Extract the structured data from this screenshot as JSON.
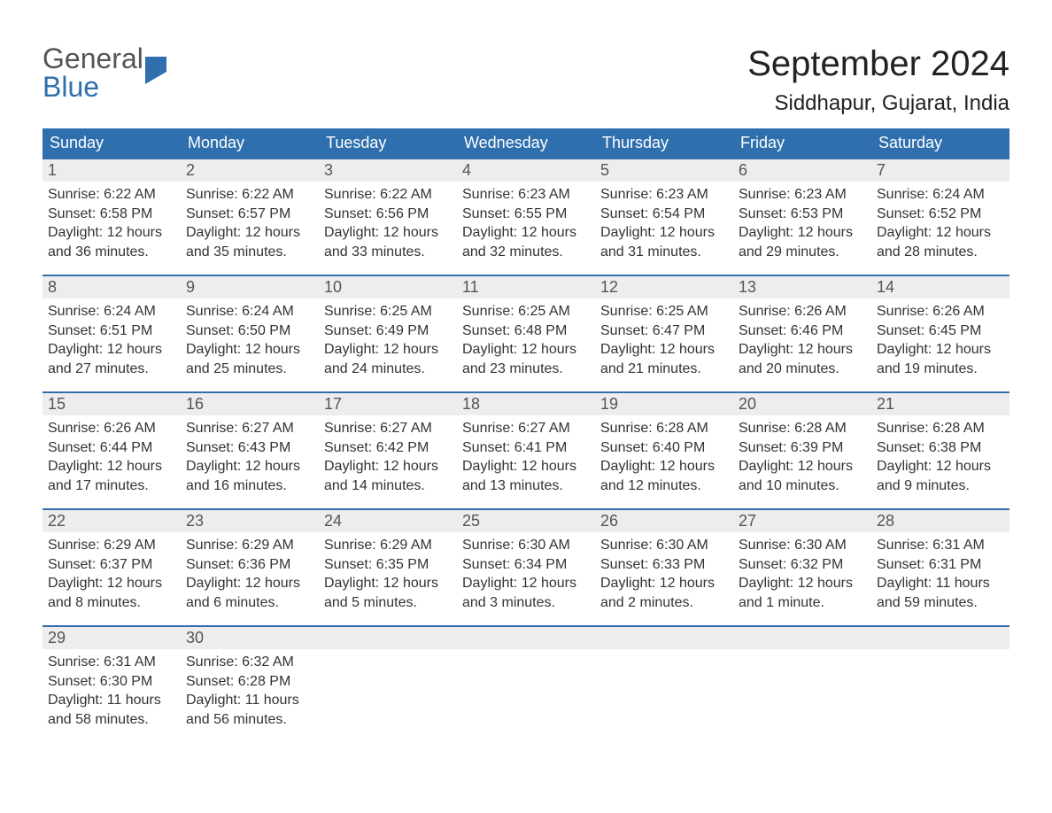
{
  "logo": {
    "line1": "General",
    "line2": "Blue"
  },
  "title": "September 2024",
  "location": "Siddhapur, Gujarat, India",
  "colors": {
    "header_bg": "#2f6fad",
    "header_text": "#ffffff",
    "daynum_bg": "#ededed",
    "daynum_border": "#2f6fad",
    "body_text": "#333333",
    "background": "#ffffff"
  },
  "weekday_labels": [
    "Sunday",
    "Monday",
    "Tuesday",
    "Wednesday",
    "Thursday",
    "Friday",
    "Saturday"
  ],
  "label_prefixes": {
    "sunrise": "Sunrise: ",
    "sunset": "Sunset: ",
    "daylight": "Daylight: "
  },
  "days": [
    {
      "n": "1",
      "sunrise": "6:22 AM",
      "sunset": "6:58 PM",
      "daylight": "12 hours and 36 minutes."
    },
    {
      "n": "2",
      "sunrise": "6:22 AM",
      "sunset": "6:57 PM",
      "daylight": "12 hours and 35 minutes."
    },
    {
      "n": "3",
      "sunrise": "6:22 AM",
      "sunset": "6:56 PM",
      "daylight": "12 hours and 33 minutes."
    },
    {
      "n": "4",
      "sunrise": "6:23 AM",
      "sunset": "6:55 PM",
      "daylight": "12 hours and 32 minutes."
    },
    {
      "n": "5",
      "sunrise": "6:23 AM",
      "sunset": "6:54 PM",
      "daylight": "12 hours and 31 minutes."
    },
    {
      "n": "6",
      "sunrise": "6:23 AM",
      "sunset": "6:53 PM",
      "daylight": "12 hours and 29 minutes."
    },
    {
      "n": "7",
      "sunrise": "6:24 AM",
      "sunset": "6:52 PM",
      "daylight": "12 hours and 28 minutes."
    },
    {
      "n": "8",
      "sunrise": "6:24 AM",
      "sunset": "6:51 PM",
      "daylight": "12 hours and 27 minutes."
    },
    {
      "n": "9",
      "sunrise": "6:24 AM",
      "sunset": "6:50 PM",
      "daylight": "12 hours and 25 minutes."
    },
    {
      "n": "10",
      "sunrise": "6:25 AM",
      "sunset": "6:49 PM",
      "daylight": "12 hours and 24 minutes."
    },
    {
      "n": "11",
      "sunrise": "6:25 AM",
      "sunset": "6:48 PM",
      "daylight": "12 hours and 23 minutes."
    },
    {
      "n": "12",
      "sunrise": "6:25 AM",
      "sunset": "6:47 PM",
      "daylight": "12 hours and 21 minutes."
    },
    {
      "n": "13",
      "sunrise": "6:26 AM",
      "sunset": "6:46 PM",
      "daylight": "12 hours and 20 minutes."
    },
    {
      "n": "14",
      "sunrise": "6:26 AM",
      "sunset": "6:45 PM",
      "daylight": "12 hours and 19 minutes."
    },
    {
      "n": "15",
      "sunrise": "6:26 AM",
      "sunset": "6:44 PM",
      "daylight": "12 hours and 17 minutes."
    },
    {
      "n": "16",
      "sunrise": "6:27 AM",
      "sunset": "6:43 PM",
      "daylight": "12 hours and 16 minutes."
    },
    {
      "n": "17",
      "sunrise": "6:27 AM",
      "sunset": "6:42 PM",
      "daylight": "12 hours and 14 minutes."
    },
    {
      "n": "18",
      "sunrise": "6:27 AM",
      "sunset": "6:41 PM",
      "daylight": "12 hours and 13 minutes."
    },
    {
      "n": "19",
      "sunrise": "6:28 AM",
      "sunset": "6:40 PM",
      "daylight": "12 hours and 12 minutes."
    },
    {
      "n": "20",
      "sunrise": "6:28 AM",
      "sunset": "6:39 PM",
      "daylight": "12 hours and 10 minutes."
    },
    {
      "n": "21",
      "sunrise": "6:28 AM",
      "sunset": "6:38 PM",
      "daylight": "12 hours and 9 minutes."
    },
    {
      "n": "22",
      "sunrise": "6:29 AM",
      "sunset": "6:37 PM",
      "daylight": "12 hours and 8 minutes."
    },
    {
      "n": "23",
      "sunrise": "6:29 AM",
      "sunset": "6:36 PM",
      "daylight": "12 hours and 6 minutes."
    },
    {
      "n": "24",
      "sunrise": "6:29 AM",
      "sunset": "6:35 PM",
      "daylight": "12 hours and 5 minutes."
    },
    {
      "n": "25",
      "sunrise": "6:30 AM",
      "sunset": "6:34 PM",
      "daylight": "12 hours and 3 minutes."
    },
    {
      "n": "26",
      "sunrise": "6:30 AM",
      "sunset": "6:33 PM",
      "daylight": "12 hours and 2 minutes."
    },
    {
      "n": "27",
      "sunrise": "6:30 AM",
      "sunset": "6:32 PM",
      "daylight": "12 hours and 1 minute."
    },
    {
      "n": "28",
      "sunrise": "6:31 AM",
      "sunset": "6:31 PM",
      "daylight": "11 hours and 59 minutes."
    },
    {
      "n": "29",
      "sunrise": "6:31 AM",
      "sunset": "6:30 PM",
      "daylight": "11 hours and 58 minutes."
    },
    {
      "n": "30",
      "sunrise": "6:32 AM",
      "sunset": "6:28 PM",
      "daylight": "11 hours and 56 minutes."
    }
  ],
  "grid": {
    "start_weekday": 0,
    "rows": 5,
    "cols": 7
  }
}
